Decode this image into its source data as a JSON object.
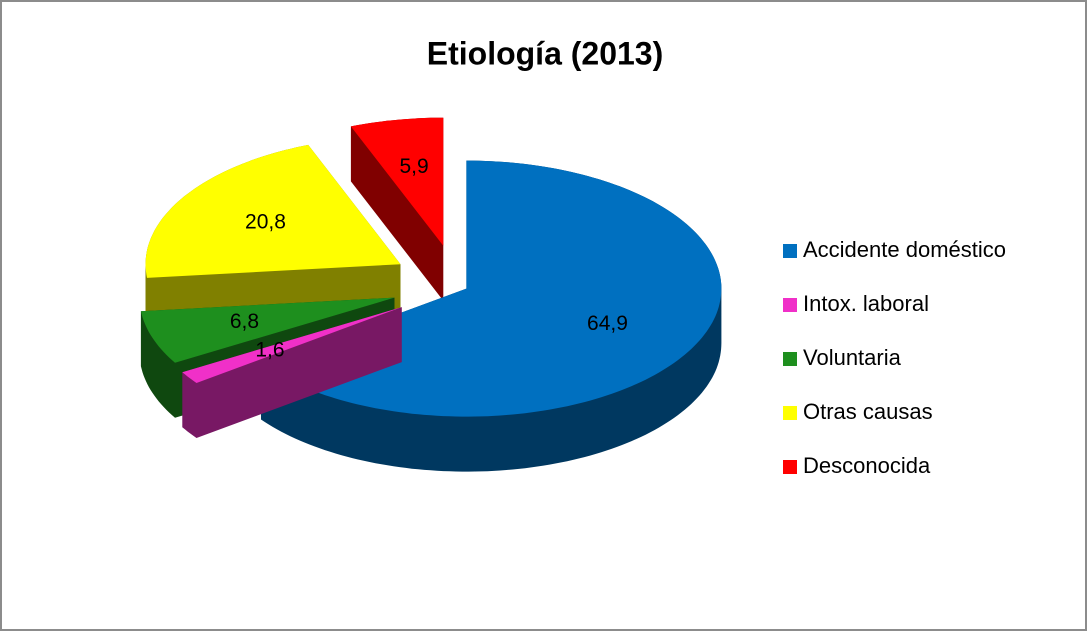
{
  "chart_data": {
    "type": "pie",
    "title": "Etiología (2013)",
    "categories": [
      "Accidente doméstico",
      "Intox. laboral",
      "Voluntaria",
      "Otras causas",
      "Desconocida"
    ],
    "values": [
      64.9,
      1.6,
      6.8,
      20.8,
      5.9
    ],
    "value_labels": [
      "64,9",
      "1,6",
      "6,8",
      "20,8",
      "5,9"
    ],
    "colors": [
      "#0070c0",
      "#f030c8",
      "#1e8f1e",
      "#ffff00",
      "#ff0000"
    ],
    "legend": "right"
  }
}
